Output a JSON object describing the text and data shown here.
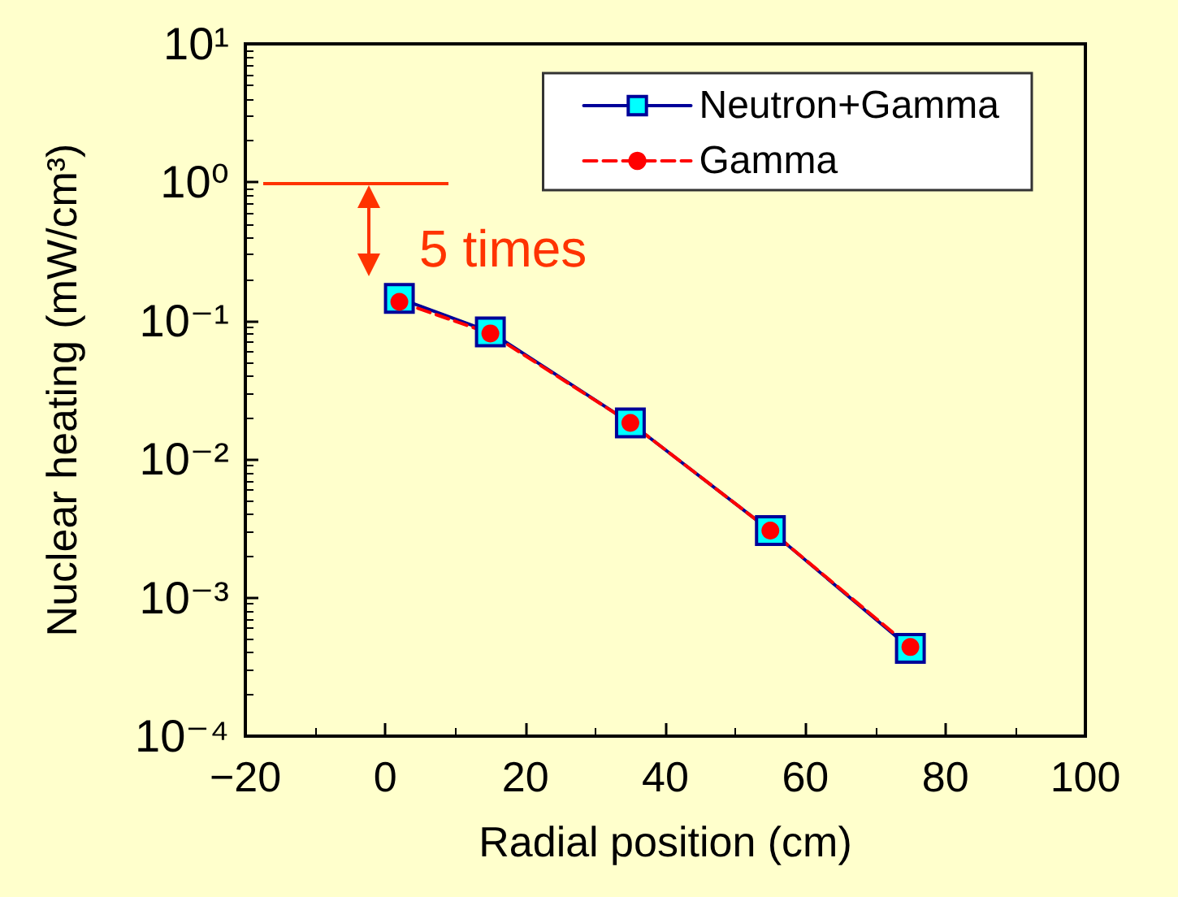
{
  "chart_data": {
    "type": "line",
    "xlabel": "Radial position (cm)",
    "ylabel": "Nuclear heating (mW/cm³)",
    "x": [
      2,
      15,
      35,
      55,
      75
    ],
    "series": [
      {
        "name": "Neutron+Gamma",
        "color": "#000099",
        "marker": "square",
        "line_style": "solid",
        "values": [
          0.145,
          0.083,
          0.0183,
          0.00305,
          0.00043
        ]
      },
      {
        "name": "Gamma",
        "color": "#ff0000",
        "marker": "circle",
        "line_style": "dashed",
        "values": [
          0.137,
          0.081,
          0.0183,
          0.00305,
          0.00044
        ]
      }
    ],
    "log": "y",
    "xlim": [
      -20,
      100
    ],
    "xticks": [
      {
        "value": -20,
        "label": "−20"
      },
      0,
      20,
      40,
      60,
      80,
      100
    ],
    "ylim": [
      0.0001,
      10
    ],
    "yticks": [
      {
        "value": 0.0001,
        "label": "10⁻⁴"
      },
      {
        "value": 0.001,
        "label": "10⁻³"
      },
      {
        "value": 0.01,
        "label": "10⁻²"
      },
      {
        "value": 0.1,
        "label": "10⁻¹"
      },
      {
        "value": 1,
        "label": "10⁰"
      },
      {
        "value": 10,
        "label": "10¹"
      }
    ],
    "grid": false,
    "legend": "top right",
    "annotations": [
      "5 times"
    ]
  }
}
